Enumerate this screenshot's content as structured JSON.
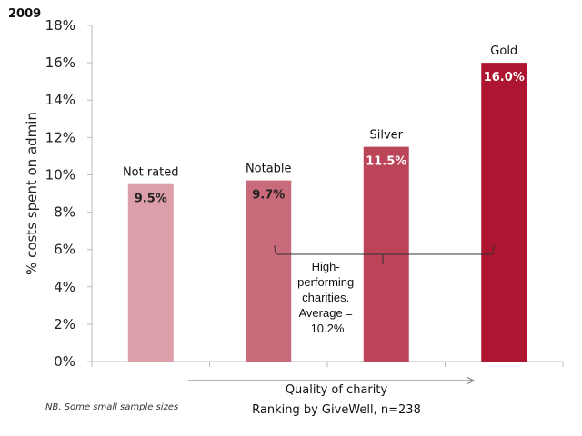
{
  "chart_data": {
    "type": "bar",
    "year_label": "2009",
    "categories": [
      "Not rated",
      "Notable",
      "Silver",
      "Gold"
    ],
    "values": [
      9.5,
      9.7,
      11.5,
      16.0
    ],
    "data_labels": [
      "9.5%",
      "9.7%",
      "11.5%",
      "16.0%"
    ],
    "colors": [
      "#dc9ea9",
      "#c96b7b",
      "#bb4458",
      "#ad1530"
    ],
    "label_colors": [
      "#222222",
      "#222222",
      "#ffffff",
      "#ffffff"
    ],
    "ylabel": "% costs spent on admin",
    "ylim": [
      0,
      18
    ],
    "yticks": [
      "0%",
      "2%",
      "4%",
      "6%",
      "8%",
      "10%",
      "12%",
      "14%",
      "16%",
      "18%"
    ],
    "grid": false,
    "xlabel_arrow": "Quality of charity",
    "xlabel": "Ranking by GiveWell, n=238",
    "annotation": [
      "High-",
      "performing",
      "charities.",
      "Average =",
      "10.2%"
    ],
    "footnote": "NB. Some small sample sizes"
  }
}
